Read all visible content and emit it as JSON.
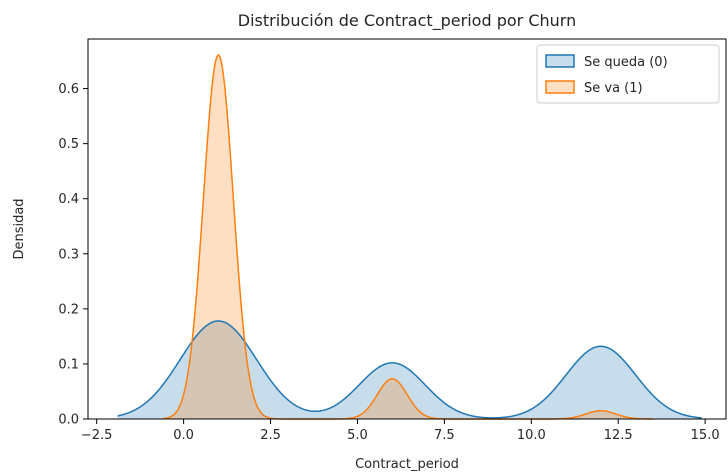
{
  "chart_data": {
    "type": "area",
    "title": "Distribución de Contract_period por Churn",
    "xlabel": "Contract_period",
    "ylabel": "Densidad",
    "xlim": [
      -2.75,
      15.6
    ],
    "ylim": [
      0,
      0.69
    ],
    "x_ticks": [
      -2.5,
      0.0,
      2.5,
      5.0,
      7.5,
      10.0,
      12.5,
      15.0
    ],
    "x_tick_labels": [
      "−2.5",
      "0.0",
      "2.5",
      "5.0",
      "7.5",
      "10.0",
      "12.5",
      "15.0"
    ],
    "y_ticks": [
      0.0,
      0.1,
      0.2,
      0.3,
      0.4,
      0.5,
      0.6
    ],
    "y_tick_labels": [
      "0.0",
      "0.1",
      "0.2",
      "0.3",
      "0.4",
      "0.5",
      "0.6"
    ],
    "legend_position": "top-right",
    "grid": false,
    "series": [
      {
        "name": "Se queda (0)",
        "color": "#1f77b4",
        "x_range": [
          -1.9,
          14.9
        ],
        "components": [
          {
            "mean": 1.0,
            "sd": 1.1,
            "peak": 0.178
          },
          {
            "mean": 6.0,
            "sd": 0.95,
            "peak": 0.102
          },
          {
            "mean": 12.0,
            "sd": 1.0,
            "peak": 0.132
          }
        ]
      },
      {
        "name": "Se va (1)",
        "color": "#ff7f0e",
        "x_range": [
          -0.6,
          13.5
        ],
        "components": [
          {
            "mean": 1.0,
            "sd": 0.43,
            "peak": 0.661
          },
          {
            "mean": 6.0,
            "sd": 0.43,
            "peak": 0.073
          },
          {
            "mean": 12.0,
            "sd": 0.43,
            "peak": 0.015
          }
        ]
      }
    ]
  }
}
